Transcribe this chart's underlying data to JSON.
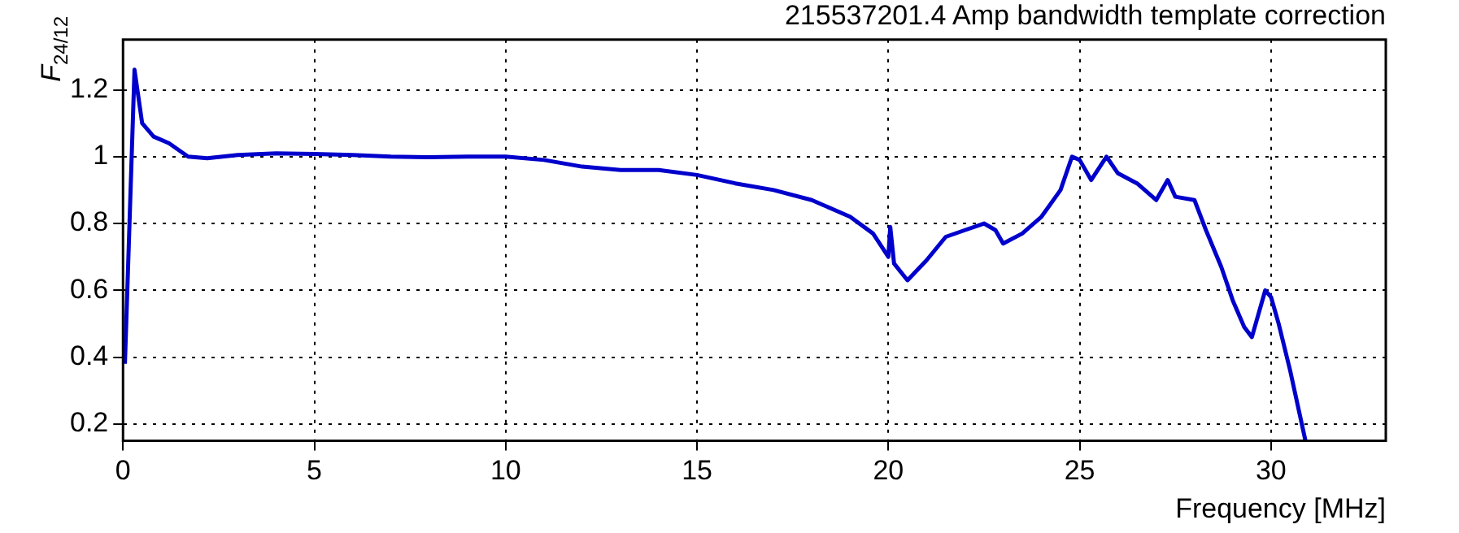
{
  "chart_data": {
    "type": "line",
    "title": "215537201.4 Amp bandwidth template correction",
    "xlabel": "Frequency [MHz]",
    "ylabel": "F$_{24/12}$",
    "x": [
      0.05,
      0.3,
      0.5,
      0.8,
      1.2,
      1.7,
      2.2,
      3,
      4,
      5,
      6,
      7,
      8,
      9,
      10,
      11,
      12,
      13,
      14,
      15,
      16,
      17,
      18,
      19,
      19.6,
      20.0,
      20.05,
      20.15,
      20.5,
      21,
      21.5,
      22,
      22.5,
      22.8,
      23.0,
      23.5,
      24,
      24.5,
      24.8,
      25,
      25.3,
      25.7,
      26,
      26.5,
      27,
      27.3,
      27.5,
      28,
      28.3,
      28.7,
      29,
      29.3,
      29.5,
      29.85,
      30,
      30.2,
      30.5,
      30.9
    ],
    "series": [
      {
        "color": "#0000cc",
        "values": [
          0.38,
          1.26,
          1.1,
          1.06,
          1.04,
          1.0,
          0.995,
          1.005,
          1.01,
          1.008,
          1.005,
          1.0,
          0.998,
          1.0,
          1.0,
          0.99,
          0.97,
          0.96,
          0.96,
          0.945,
          0.92,
          0.9,
          0.87,
          0.82,
          0.77,
          0.7,
          0.79,
          0.68,
          0.63,
          0.69,
          0.76,
          0.78,
          0.8,
          0.78,
          0.74,
          0.77,
          0.82,
          0.9,
          1.0,
          0.99,
          0.93,
          1.0,
          0.95,
          0.92,
          0.87,
          0.93,
          0.88,
          0.87,
          0.78,
          0.67,
          0.57,
          0.49,
          0.46,
          0.6,
          0.58,
          0.5,
          0.36,
          0.15
        ]
      }
    ],
    "xlim": [
      0,
      33
    ],
    "xticks": [
      0,
      5,
      10,
      15,
      20,
      25,
      30
    ],
    "ylim": [
      0.15,
      1.35
    ],
    "yticks": [
      0.2,
      0.4,
      0.6,
      0.8,
      1,
      1.2
    ],
    "grid": true,
    "legend": false,
    "marker": "none",
    "line_style": "solid"
  }
}
